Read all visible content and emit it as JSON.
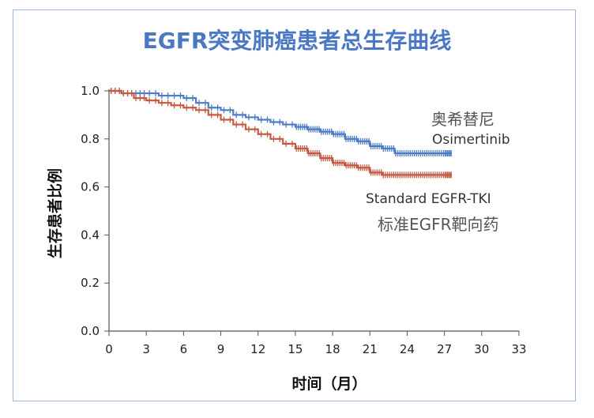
{
  "chart_data": {
    "type": "line",
    "title": "EGFR突变肺癌患者总生存曲线",
    "xlabel": "时间（月）",
    "ylabel": "生存患者比例",
    "xlim": [
      0,
      33
    ],
    "ylim": [
      0,
      1.0
    ],
    "x_ticks": [
      "0",
      "3",
      "6",
      "9",
      "12",
      "15",
      "18",
      "21",
      "24",
      "27",
      "30",
      "33"
    ],
    "y_ticks": [
      "0.0",
      "0.2",
      "0.4",
      "0.6",
      "0.8",
      "1.0"
    ],
    "grid": false,
    "legend": "inline labels",
    "series": [
      {
        "name": "Osimertinib",
        "name_cn": "奥希替尼",
        "color": "#4f7cc6",
        "x": [
          0,
          1,
          2,
          3,
          4,
          5,
          6,
          7,
          8,
          9,
          10,
          11,
          12,
          13,
          14,
          15,
          16,
          17,
          18,
          19,
          20,
          21,
          22,
          23,
          24,
          25,
          26,
          27,
          27.6
        ],
        "y": [
          1.0,
          0.99,
          0.99,
          0.99,
          0.98,
          0.98,
          0.97,
          0.95,
          0.93,
          0.92,
          0.9,
          0.89,
          0.88,
          0.87,
          0.86,
          0.85,
          0.84,
          0.83,
          0.82,
          0.8,
          0.79,
          0.77,
          0.76,
          0.74,
          0.74,
          0.74,
          0.74,
          0.74,
          0.74
        ]
      },
      {
        "name": "Standard EGFR-TKI",
        "name_cn": "标准EGFR靶向药",
        "color": "#c55a44",
        "x": [
          0,
          1,
          2,
          3,
          4,
          5,
          6,
          7,
          8,
          9,
          10,
          11,
          12,
          13,
          14,
          15,
          16,
          17,
          18,
          19,
          20,
          21,
          22,
          23,
          24,
          25,
          26,
          27,
          27.6
        ],
        "y": [
          1.0,
          0.99,
          0.97,
          0.96,
          0.95,
          0.94,
          0.93,
          0.92,
          0.9,
          0.88,
          0.86,
          0.84,
          0.82,
          0.8,
          0.78,
          0.76,
          0.74,
          0.72,
          0.7,
          0.69,
          0.68,
          0.66,
          0.65,
          0.65,
          0.65,
          0.65,
          0.65,
          0.65,
          0.65
        ]
      }
    ]
  }
}
